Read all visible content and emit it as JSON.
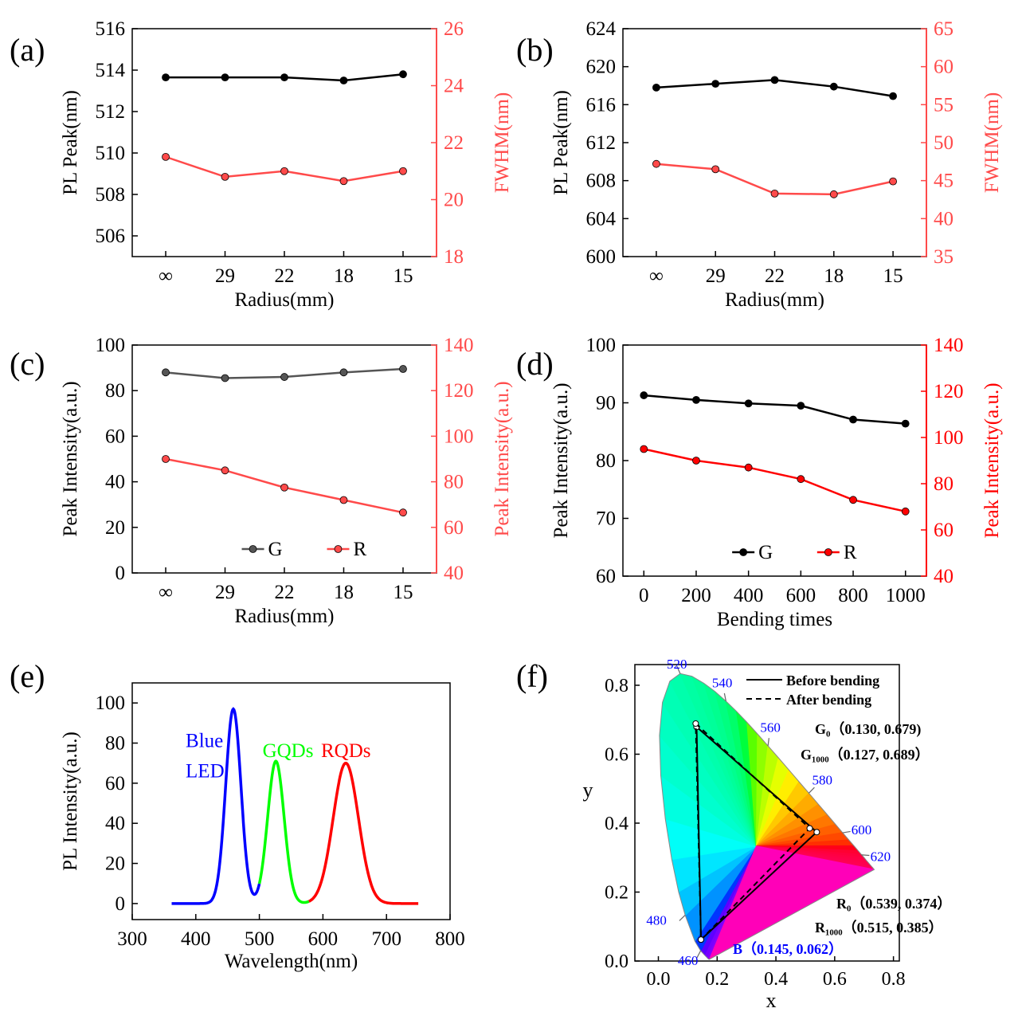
{
  "chart_data": [
    {
      "panel": "(a)",
      "type": "line",
      "categories": [
        "∞",
        "29",
        "22",
        "18",
        "15"
      ],
      "xlabel": "Radius(mm)",
      "ylabel": "PL Peak(nm)",
      "y2label": "FWHM(nm)",
      "ylim": [
        505,
        516
      ],
      "yticks": [
        506,
        508,
        510,
        512,
        514,
        516
      ],
      "y2lim": [
        18,
        26
      ],
      "y2ticks": [
        18,
        20,
        22,
        24,
        26
      ],
      "series": [
        {
          "name": "PL Peak",
          "axis": "left",
          "color": "#000000",
          "values": [
            513.65,
            513.65,
            513.65,
            513.5,
            513.8
          ]
        },
        {
          "name": "FWHM",
          "axis": "right",
          "color": "#ff4a4a",
          "values": [
            21.5,
            20.8,
            21.0,
            20.65,
            21.0
          ]
        }
      ]
    },
    {
      "panel": "(b)",
      "type": "line",
      "categories": [
        "∞",
        "29",
        "22",
        "18",
        "15"
      ],
      "xlabel": "Radius(mm)",
      "ylabel": "PL Peak(nm)",
      "y2label": "FWHM(nm)",
      "ylim": [
        600,
        624
      ],
      "yticks": [
        600,
        604,
        608,
        612,
        616,
        620,
        624
      ],
      "y2lim": [
        35,
        65
      ],
      "y2ticks": [
        35,
        40,
        45,
        50,
        55,
        60,
        65
      ],
      "series": [
        {
          "name": "PL Peak",
          "axis": "left",
          "color": "#000000",
          "values": [
            617.8,
            618.2,
            618.6,
            617.9,
            616.9
          ]
        },
        {
          "name": "FWHM",
          "axis": "right",
          "color": "#ff4a4a",
          "values": [
            47.2,
            46.5,
            43.3,
            43.2,
            44.9
          ]
        }
      ]
    },
    {
      "panel": "(c)",
      "type": "line",
      "categories": [
        "∞",
        "29",
        "22",
        "18",
        "15"
      ],
      "xlabel": "Radius(mm)",
      "ylabel": "Peak Intensity(a.u.)",
      "y2label": "Peak Intensity(a.u.)",
      "ylim": [
        0,
        100
      ],
      "yticks": [
        0,
        20,
        40,
        60,
        80,
        100
      ],
      "y2lim": [
        40,
        140
      ],
      "y2ticks": [
        40,
        60,
        80,
        100,
        120,
        140
      ],
      "legend": [
        "G",
        "R"
      ],
      "series": [
        {
          "name": "G",
          "axis": "left",
          "color": "#555555",
          "values": [
            88,
            85.5,
            86,
            88,
            89.5
          ]
        },
        {
          "name": "R",
          "axis": "right",
          "color": "#ff4a4a",
          "values": [
            90,
            85,
            77.5,
            72,
            66.5
          ]
        }
      ]
    },
    {
      "panel": "(d)",
      "type": "line",
      "x": [
        0,
        200,
        400,
        600,
        800,
        1000
      ],
      "xticks": [
        0,
        200,
        400,
        600,
        800,
        1000
      ],
      "xlabel": "Bending times",
      "ylabel": "Peak Intensity(a.u.)",
      "y2label": "Peak Intensity(a.u.)",
      "xlim": [
        -80,
        1080
      ],
      "ylim": [
        60,
        100
      ],
      "yticks": [
        60,
        70,
        80,
        90,
        100
      ],
      "y2lim": [
        40,
        140
      ],
      "y2ticks": [
        40,
        60,
        80,
        100,
        120,
        140
      ],
      "legend": [
        "G",
        "R"
      ],
      "series": [
        {
          "name": "G",
          "axis": "left",
          "color": "#000000",
          "values": [
            91.3,
            90.5,
            89.9,
            89.5,
            87.1,
            86.4
          ]
        },
        {
          "name": "R",
          "axis": "right",
          "color": "#ff0000",
          "values": [
            95,
            90,
            87,
            82,
            73,
            68
          ]
        }
      ]
    },
    {
      "panel": "(e)",
      "type": "line",
      "xlabel": "Wavelength(nm)",
      "ylabel": "PL Intensity(a.u.)",
      "xlim": [
        300,
        800
      ],
      "xticks": [
        300,
        400,
        500,
        600,
        700,
        800
      ],
      "ylim": [
        -8,
        110
      ],
      "yticks": [
        0,
        20,
        40,
        60,
        80,
        100
      ],
      "series": [
        {
          "name": "Blue LED",
          "color": "#0000ff",
          "range": [
            362,
            500
          ],
          "peak": {
            "center": 459,
            "height": 97,
            "width": 12
          }
        },
        {
          "name": "GQDs",
          "color": "#00ff00",
          "range": [
            500,
            578
          ],
          "peak": {
            "center": 526,
            "height": 71,
            "width": 13
          }
        },
        {
          "name": "RQDs",
          "color": "#ff0000",
          "range": [
            578,
            750
          ],
          "peak": {
            "center": 636,
            "height": 70,
            "width": 20
          }
        }
      ],
      "annotations": [
        "Blue",
        "LED",
        "GQDs",
        "RQDs"
      ]
    },
    {
      "panel": "(f)",
      "type": "scatter",
      "xlabel": "x",
      "ylabel": "y",
      "xlim": [
        -0.08,
        0.82
      ],
      "xticks": [
        0.0,
        0.2,
        0.4,
        0.6,
        0.8
      ],
      "ylim": [
        0.0,
        0.86
      ],
      "yticks": [
        0.0,
        0.2,
        0.4,
        0.6,
        0.8
      ],
      "wavelength_marks": [
        {
          "label": "460",
          "x": 0.144,
          "y": 0.03
        },
        {
          "label": "480",
          "x": 0.091,
          "y": 0.133
        },
        {
          "label": "520",
          "x": 0.074,
          "y": 0.834
        },
        {
          "label": "540",
          "x": 0.23,
          "y": 0.754
        },
        {
          "label": "560",
          "x": 0.373,
          "y": 0.624
        },
        {
          "label": "580",
          "x": 0.512,
          "y": 0.487
        },
        {
          "label": "600",
          "x": 0.627,
          "y": 0.372
        },
        {
          "label": "620",
          "x": 0.691,
          "y": 0.308
        }
      ],
      "series": [
        {
          "name": "Before bending",
          "style": "solid",
          "points": [
            [
              0.13,
              0.679
            ],
            [
              0.539,
              0.374
            ],
            [
              0.145,
              0.062
            ]
          ]
        },
        {
          "name": "After bending",
          "style": "dashed",
          "points": [
            [
              0.127,
              0.689
            ],
            [
              0.515,
              0.385
            ],
            [
              0.145,
              0.062
            ]
          ]
        }
      ],
      "labels": {
        "g0": "G₀（0.130, 0.679)",
        "g1000": "G₁₀₀₀（0.127, 0.689）",
        "r0": "R₀（0.539, 0.374）",
        "r1000": "R₁₀₀₀（0.515, 0.385）",
        "b": "B（0.145, 0.062）"
      }
    }
  ]
}
